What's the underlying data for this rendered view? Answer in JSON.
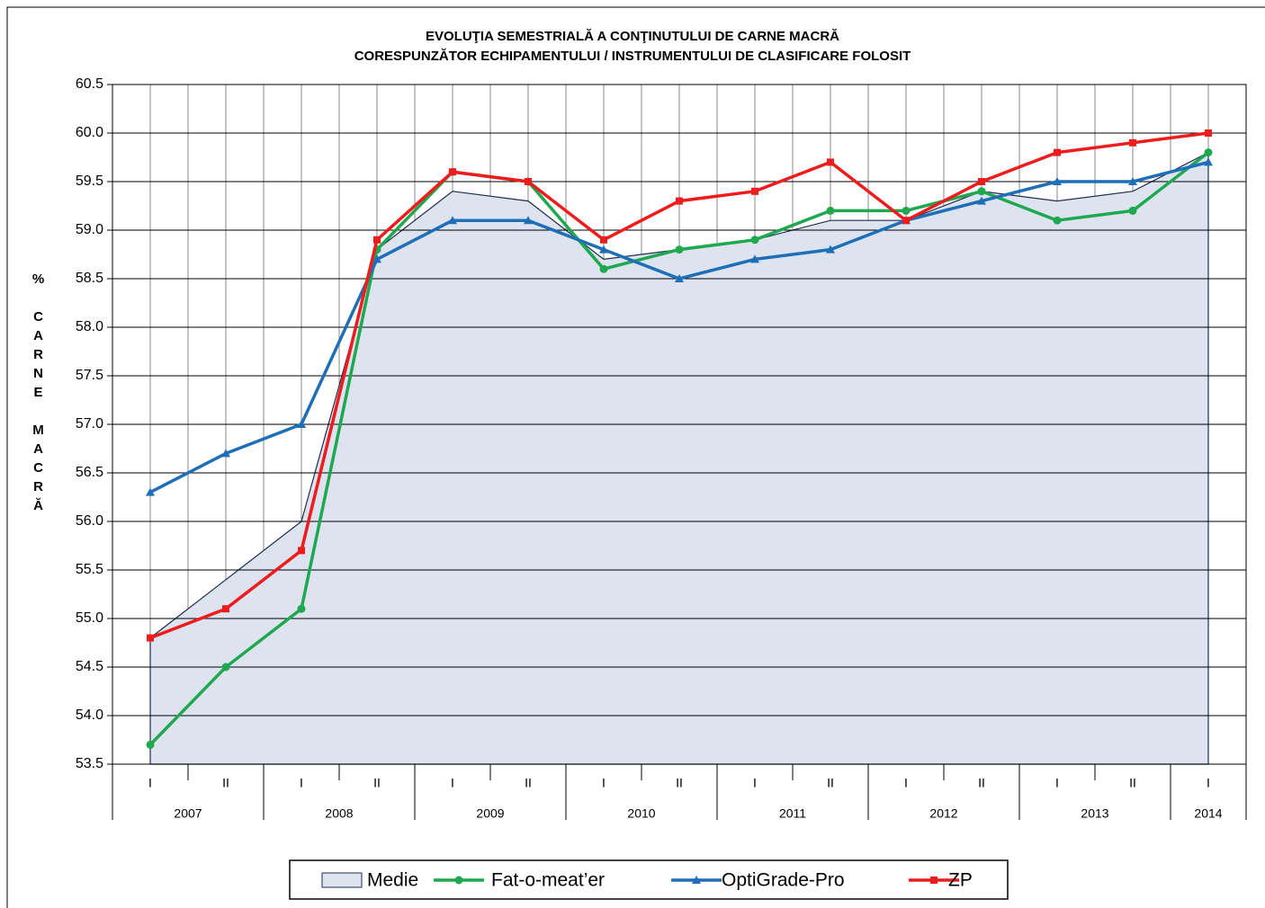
{
  "chart_data": {
    "type": "line",
    "title": [
      "EVOLUŢIA SEMESTRIALĂ A CONŢINUTULUI  DE CARNE MACRĂ",
      "CORESPUNZĂTOR  ECHIPAMENTULUI / INSTRUMENTULUI DE CLASIFICARE FOLOSIT"
    ],
    "ylabel": "% CARNE MACRĂ",
    "categories": [
      "I",
      "II",
      "I",
      "II",
      "I",
      "II",
      "I",
      "II",
      "I",
      "II",
      "I",
      "II",
      "I",
      "II",
      "I"
    ],
    "years": [
      "2007",
      "2008",
      "2009",
      "2010",
      "2011",
      "2012",
      "2013",
      "2014"
    ],
    "ylim": [
      53.5,
      60.5
    ],
    "yticks": [
      53.5,
      {
        "value": 54,
        "label": "54.0"
      },
      54.5,
      {
        "value": 55,
        "label": "55.0"
      },
      55.5,
      {
        "value": 56,
        "label": "56.0"
      },
      56.5,
      {
        "value": 57,
        "label": "57.0"
      },
      57.5,
      {
        "value": 58,
        "label": "58.0"
      },
      58.5,
      {
        "value": 59,
        "label": "59.0"
      },
      59.5,
      {
        "value": 60,
        "label": "60.0"
      },
      60.5
    ],
    "grid": true,
    "legend": "bottom",
    "series": [
      {
        "name": "Medie",
        "type": "area",
        "color": "#dde4ef",
        "edge_color": "#1f2d4f",
        "values": [
          54.8,
          55.4,
          56.0,
          58.8,
          59.4,
          59.3,
          58.7,
          58.8,
          58.9,
          59.1,
          59.1,
          59.4,
          59.3,
          59.4,
          59.8
        ]
      },
      {
        "name": "Fat-o-meat’er",
        "marker": "circle",
        "color": "#1fa84f",
        "values": [
          53.7,
          54.5,
          55.1,
          58.8,
          59.6,
          59.5,
          58.6,
          58.8,
          58.9,
          59.2,
          59.2,
          59.4,
          59.1,
          59.2,
          59.8
        ]
      },
      {
        "name": "OptiGrade-Pro",
        "marker": "triangle",
        "color": "#1f6fb8",
        "values": [
          56.3,
          56.7,
          57.0,
          58.7,
          59.1,
          59.1,
          58.8,
          58.5,
          58.7,
          58.8,
          59.1,
          59.3,
          59.5,
          59.5,
          59.7
        ]
      },
      {
        "name": "ZP",
        "marker": "square",
        "color": "#ee1c1c",
        "values": [
          54.8,
          55.1,
          55.7,
          58.9,
          59.6,
          59.5,
          58.9,
          59.3,
          59.4,
          59.7,
          59.1,
          59.5,
          59.8,
          59.9,
          60.0
        ]
      }
    ]
  }
}
